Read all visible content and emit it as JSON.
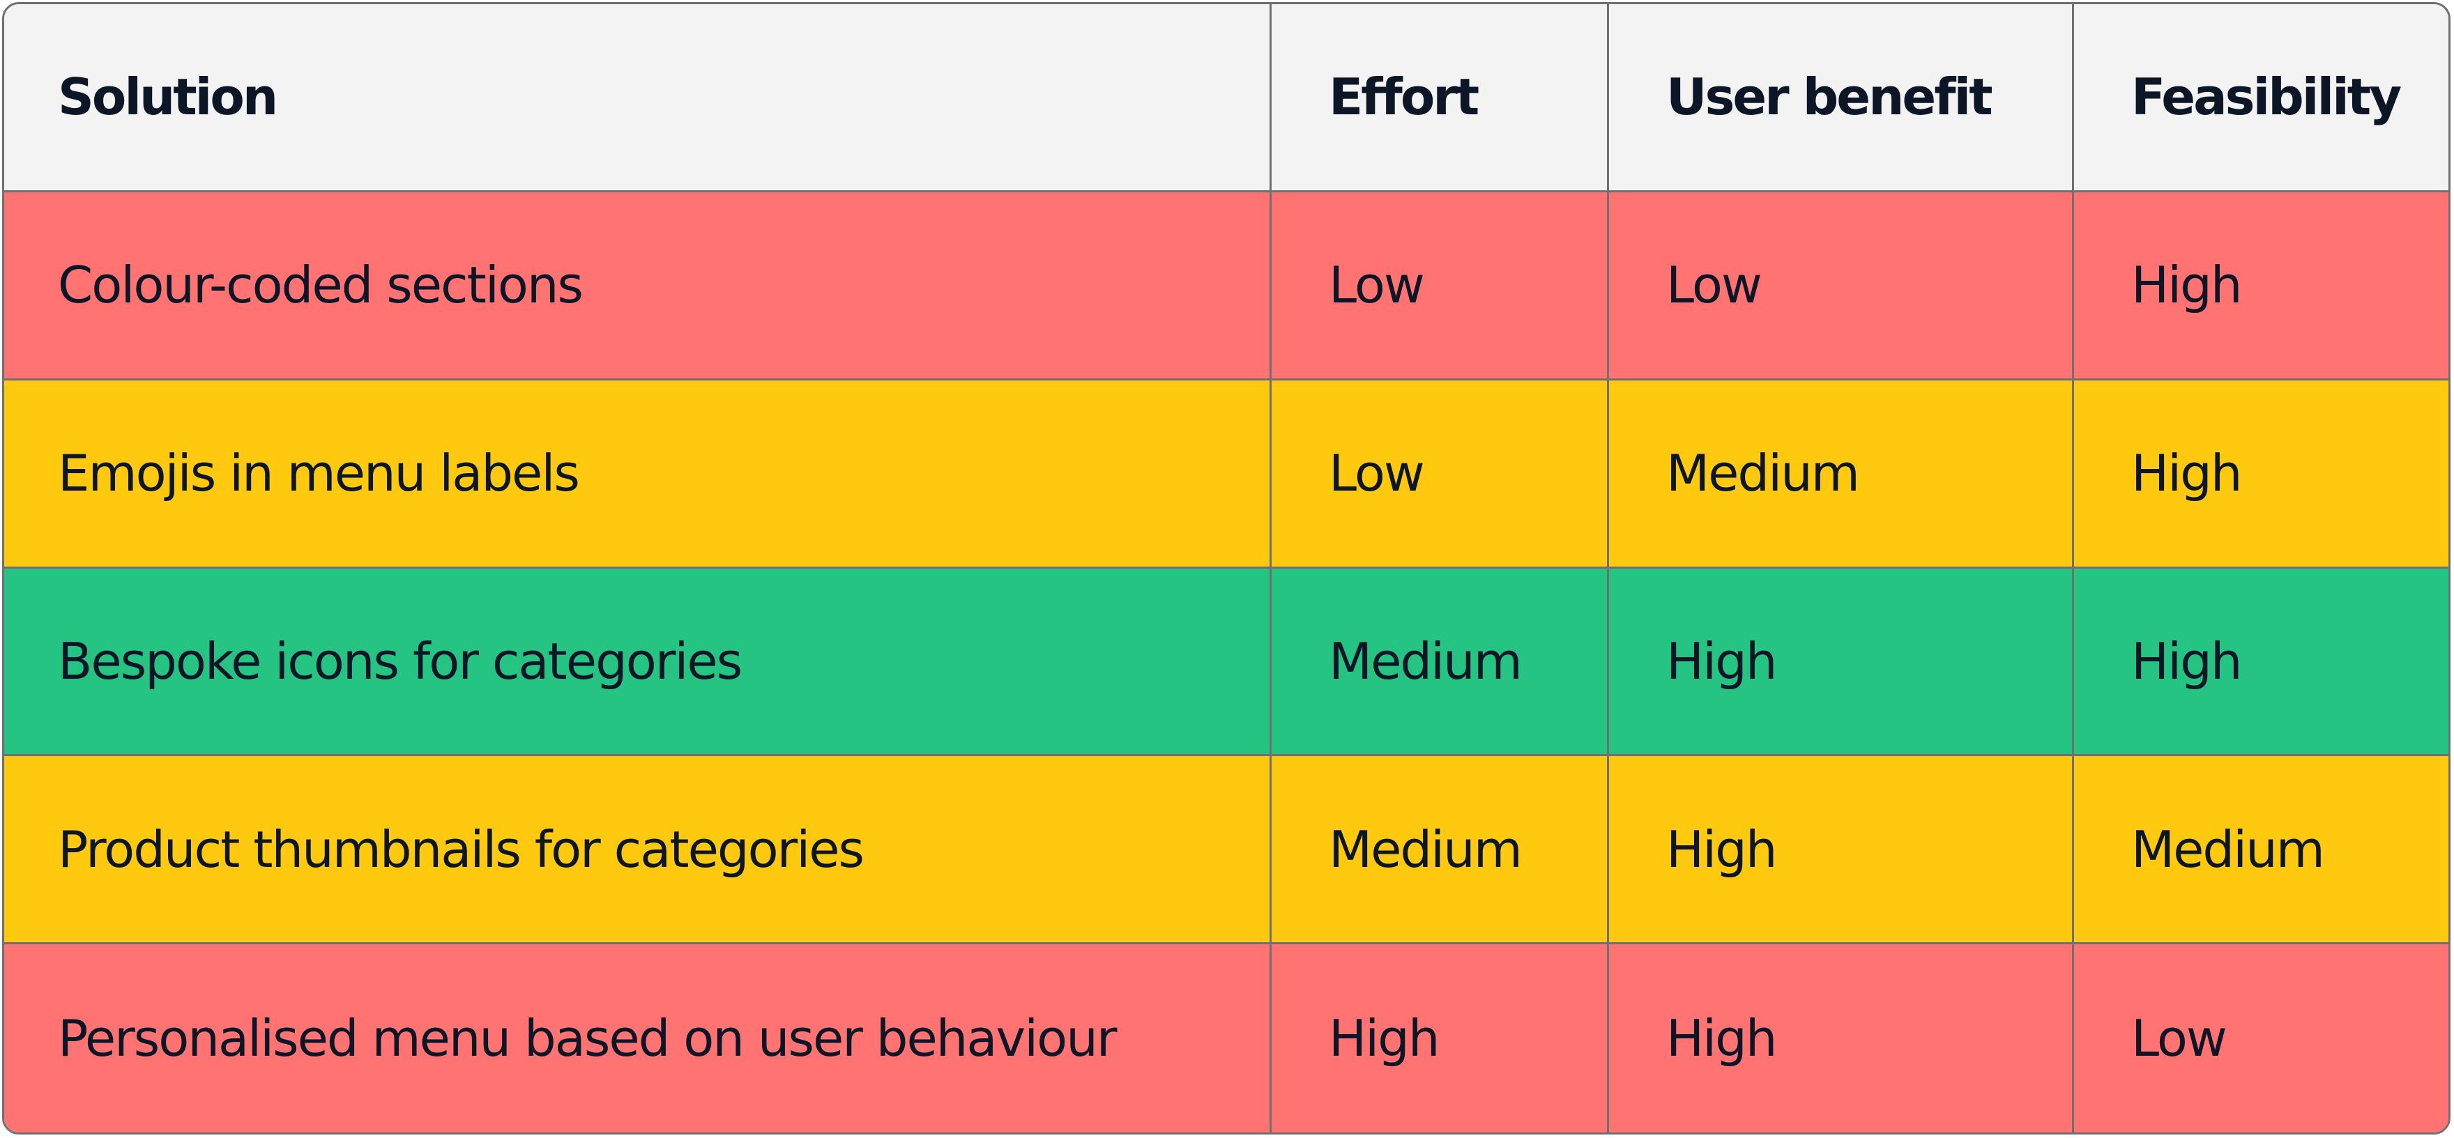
{
  "colors": {
    "red": "#ff7372",
    "yellow": "#fec90f",
    "green": "#25c482",
    "header": "#f3f3f3",
    "text": "#0d1627",
    "border": "#707070"
  },
  "table": {
    "headers": [
      "Solution",
      "Effort",
      "User benefit",
      "Feasibility"
    ],
    "rows": [
      {
        "color": "red",
        "cells": [
          "Colour-coded sections",
          "Low",
          "Low",
          "High"
        ]
      },
      {
        "color": "yellow",
        "cells": [
          "Emojis in menu labels",
          "Low",
          "Medium",
          "High"
        ]
      },
      {
        "color": "green",
        "cells": [
          "Bespoke icons for categories",
          "Medium",
          "High",
          "High"
        ]
      },
      {
        "color": "yellow",
        "cells": [
          "Product thumbnails for categories",
          "Medium",
          "High",
          "Medium"
        ]
      },
      {
        "color": "red",
        "cells": [
          "Personalised menu based on user behaviour",
          "High",
          "High",
          "Low"
        ]
      }
    ]
  }
}
